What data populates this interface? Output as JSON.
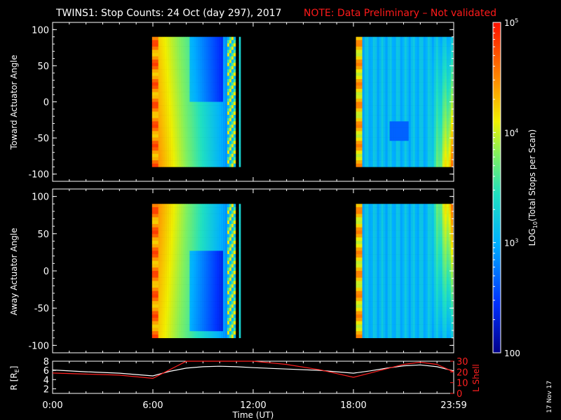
{
  "header": {
    "title": "TWINS1: Stop Counts: 24 Oct (day 297), 2017",
    "note": "NOTE: Data Preliminary – Not validated"
  },
  "stamp": "17 Nov 17",
  "colors": {
    "background": "#000000",
    "foreground": "#ffffff",
    "note": "#ff1a1a",
    "lshell": "#ff2020"
  },
  "chart_data": [
    {
      "type": "heatmap",
      "ylabel": "Toward Actuator Angle",
      "x_range_hours": [
        0,
        24
      ],
      "ylim": [
        -110,
        110
      ],
      "yticks": [
        "100",
        "50",
        "0",
        "-50",
        "-100"
      ],
      "angle_range": [
        -90,
        90
      ],
      "data_intervals_hours": [
        [
          5.95,
          10.95
        ],
        [
          11.15,
          11.25
        ],
        [
          18.15,
          23.95
        ]
      ],
      "scale": "log10"
    },
    {
      "type": "heatmap",
      "ylabel": "Away Actuator Angle",
      "x_range_hours": [
        0,
        24
      ],
      "ylim": [
        -110,
        110
      ],
      "yticks": [
        "100",
        "50",
        "0",
        "-50",
        "-100"
      ],
      "angle_range": [
        -90,
        90
      ],
      "data_intervals_hours": [
        [
          5.95,
          10.95
        ],
        [
          11.15,
          11.25
        ],
        [
          18.15,
          23.95
        ]
      ],
      "scale": "log10"
    },
    {
      "type": "line",
      "ylabel": "R [R",
      "ylabel_sub": "E",
      "ylabel_end": "]",
      "ylim": [
        1,
        8
      ],
      "yticks": [
        "8",
        "6",
        "4",
        "2"
      ],
      "y2label": "L Shell",
      "y2lim": [
        0,
        30
      ],
      "y2ticks": [
        "30",
        "20",
        "10",
        "0"
      ],
      "xlabel": "Time (UT)",
      "xticks": [
        "0:00",
        "6:00",
        "12:00",
        "18:00",
        "23:59"
      ],
      "series": [
        {
          "key": "r",
          "x": [
            0,
            2,
            4,
            6,
            7,
            8,
            9,
            10,
            11,
            12,
            14,
            16,
            18,
            19,
            20,
            21,
            22,
            23,
            24
          ],
          "values": [
            6.1,
            5.7,
            5.4,
            4.8,
            5.8,
            6.5,
            6.8,
            6.9,
            6.8,
            6.6,
            6.3,
            6.0,
            5.4,
            5.9,
            6.5,
            7.0,
            7.2,
            6.8,
            5.9
          ]
        },
        {
          "key": "l",
          "x": [
            0,
            2,
            4,
            6,
            7,
            8,
            9,
            10,
            11,
            12,
            14,
            16,
            18,
            19,
            20,
            21,
            22,
            23,
            24
          ],
          "values": [
            19,
            18,
            17,
            14,
            22,
            31,
            31,
            31,
            31,
            31,
            27,
            22,
            15,
            19,
            23,
            27,
            29,
            27,
            20
          ]
        }
      ]
    }
  ],
  "colorbar": {
    "label": "LOG",
    "label_sub": "10",
    "label_end": "(Total Stops per Scan)",
    "ticks": [
      {
        "base": "10",
        "exp": "5",
        "value": 100000
      },
      {
        "base": "10",
        "exp": "4",
        "value": 10000
      },
      {
        "base": "10",
        "exp": "3",
        "value": 1000
      },
      {
        "base": "100",
        "exp": "",
        "value": 100
      }
    ],
    "min": 100,
    "max": 100000
  }
}
